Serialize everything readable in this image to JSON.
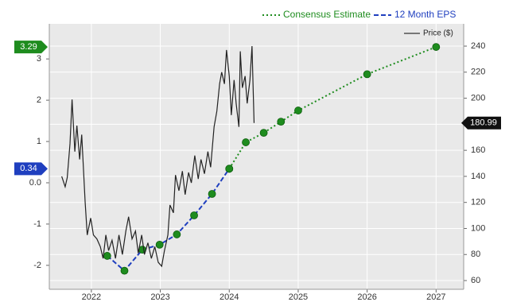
{
  "chart_data": {
    "type": "line",
    "xlim": [
      2021.39,
      2027.4
    ],
    "xticks": [
      2022,
      2023,
      2024,
      2025,
      2026,
      2027
    ],
    "ylim": [
      -2.58,
      3.85
    ],
    "yticks": [
      -2,
      -1,
      {
        "value": 0,
        "label": "0.0"
      },
      1,
      2,
      3
    ],
    "y2lim": [
      53.3,
      257.1
    ],
    "y2ticks": [
      60,
      80,
      100,
      120,
      140,
      160,
      180,
      200,
      220,
      240
    ],
    "grid": true,
    "background": "#e9e9e9",
    "marker_color": "#1e8c1e",
    "series": [
      {
        "name": "Consensus Estimate",
        "color": "#1e8c1e",
        "line_style": "dotted",
        "markers": true,
        "x": [
          2024.0,
          2024.24,
          2024.5,
          2024.75,
          2025.0,
          2026.0,
          2027.0
        ],
        "values": [
          0.34,
          0.98,
          1.21,
          1.48,
          1.75,
          2.63,
          3.29
        ]
      },
      {
        "name": "12 Month EPS",
        "color": "#1f3fbf",
        "line_style": "dashed",
        "markers": true,
        "x": [
          2022.23,
          2022.48,
          2022.74,
          2022.99,
          2023.24,
          2023.49,
          2023.75,
          2024.0
        ],
        "values": [
          -1.77,
          -2.13,
          -1.62,
          -1.5,
          -1.25,
          -0.79,
          -0.27,
          0.34
        ]
      },
      {
        "name": "Price ($)",
        "color": "#222222",
        "line_style": "solid",
        "markers": false,
        "axis": "y2",
        "x": [
          2021.57,
          2021.62,
          2021.65,
          2021.69,
          2021.72,
          2021.76,
          2021.79,
          2021.83,
          2021.86,
          2021.91,
          2021.94,
          2021.99,
          2022.03,
          2022.08,
          2022.13,
          2022.17,
          2022.21,
          2022.25,
          2022.3,
          2022.35,
          2022.4,
          2022.45,
          2022.5,
          2022.54,
          2022.59,
          2022.64,
          2022.68,
          2022.73,
          2022.77,
          2022.82,
          2022.87,
          2022.92,
          2022.97,
          2023.02,
          2023.06,
          2023.11,
          2023.14,
          2023.19,
          2023.22,
          2023.27,
          2023.32,
          2023.36,
          2023.41,
          2023.45,
          2023.5,
          2023.55,
          2023.59,
          2023.64,
          2023.69,
          2023.73,
          2023.78,
          2023.82,
          2023.86,
          2023.89,
          2023.93,
          2023.96,
          2024.0,
          2024.03,
          2024.07,
          2024.1,
          2024.14,
          2024.16,
          2024.19,
          2024.23,
          2024.26,
          2024.3,
          2024.33,
          2024.36
        ],
        "values": [
          140,
          132,
          139,
          165,
          199,
          159,
          179,
          153,
          172,
          120,
          95,
          108,
          95,
          92,
          86,
          77,
          95,
          83,
          91,
          77,
          95,
          80,
          98,
          109,
          92,
          98,
          81,
          95,
          80,
          89,
          77,
          86,
          74,
          71,
          83,
          95,
          118,
          112,
          141,
          129,
          144,
          126,
          143,
          135,
          156,
          138,
          153,
          142,
          159,
          147,
          178,
          190,
          211,
          220,
          211,
          237,
          217,
          187,
          214,
          196,
          178,
          236,
          208,
          217,
          196,
          214,
          240,
          180.99
        ]
      }
    ]
  }
}
